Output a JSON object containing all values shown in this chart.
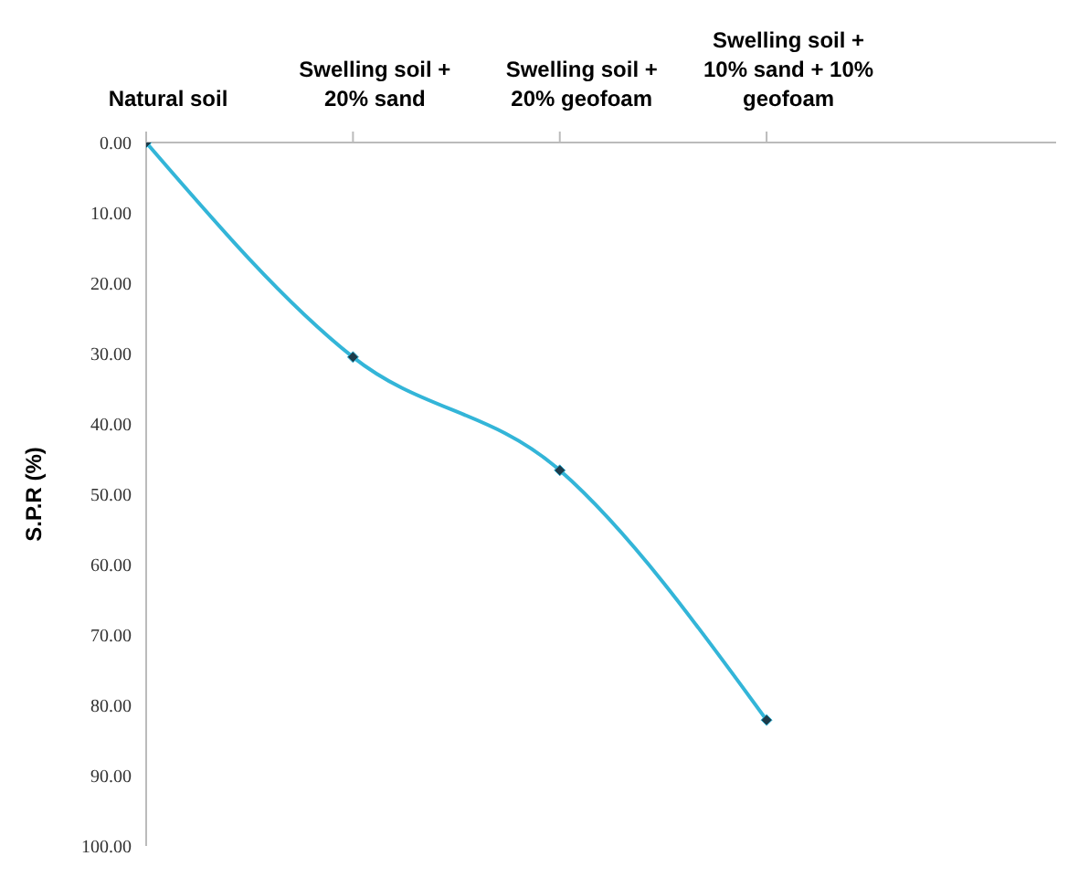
{
  "chart_data": {
    "type": "line",
    "ylabel": "S.P.R (%)",
    "categories": [
      "Natural soil",
      "Swelling soil + 20% sand",
      "Swelling soil + 20% geofoam",
      "Swelling soil + 10% sand + 10% geofoam"
    ],
    "series": [
      {
        "color": "#33b5d8",
        "values": [
          0,
          30.5,
          46.6,
          82.1
        ]
      }
    ],
    "ylim": [
      100,
      0
    ],
    "yticks": [
      {
        "value": 0,
        "label": "0.00"
      },
      {
        "value": 10,
        "label": "10.00"
      },
      {
        "value": 20,
        "label": "20.00"
      },
      {
        "value": 30,
        "label": "30.00"
      },
      {
        "value": 40,
        "label": "40.00"
      },
      {
        "value": 50,
        "label": "50.00"
      },
      {
        "value": 60,
        "label": "60.00"
      },
      {
        "value": 70,
        "label": "70.00"
      },
      {
        "value": 80,
        "label": "80.00"
      },
      {
        "value": 90,
        "label": "90.00"
      },
      {
        "value": 100,
        "label": "100.00"
      }
    ],
    "marker": "diamond",
    "grid": false,
    "legend": false
  }
}
